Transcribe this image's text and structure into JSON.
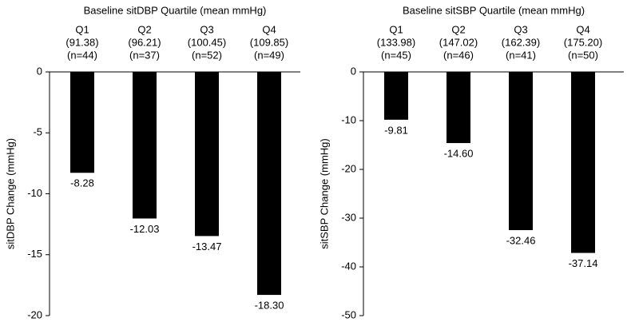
{
  "chart_data": [
    {
      "type": "bar",
      "title": "Baseline sitDBP Quartile (mean mmHg)",
      "y_label": "sitDBP Change (mmHg)",
      "categories": [
        "Q1",
        "Q2",
        "Q3",
        "Q4"
      ],
      "category_means": [
        "(91.38)",
        "(96.21)",
        "(100.45)",
        "(109.85)"
      ],
      "category_counts": [
        "(n=44)",
        "(n=37)",
        "(n=52)",
        "(n=49)"
      ],
      "values": [
        -8.28,
        -12.03,
        -13.47,
        -18.3
      ],
      "value_labels": [
        "-8.28",
        "-12.03",
        "-13.47",
        "-18.30"
      ],
      "color": "#000000",
      "ylim": [
        -20,
        0
      ],
      "yticks": [
        0,
        -5,
        -10,
        -15,
        -20
      ]
    },
    {
      "type": "bar",
      "title": "Baseline sitSBP Quartile (mean mmHg)",
      "y_label": "sitSBP Change (mmHg)",
      "categories": [
        "Q1",
        "Q2",
        "Q3",
        "Q4"
      ],
      "category_means": [
        "(133.98)",
        "(147.02)",
        "(162.39)",
        "(175.20)"
      ],
      "category_counts": [
        "(n=45)",
        "(n=46)",
        "(n=41)",
        "(n=50)"
      ],
      "values": [
        -9.81,
        -14.6,
        -32.46,
        -37.14
      ],
      "value_labels": [
        "-9.81",
        "-14.60",
        "-32.46",
        "-37.14"
      ],
      "color": "#000000",
      "ylim": [
        -50,
        0
      ],
      "yticks": [
        0,
        -10,
        -20,
        -30,
        -40,
        -50
      ]
    }
  ]
}
